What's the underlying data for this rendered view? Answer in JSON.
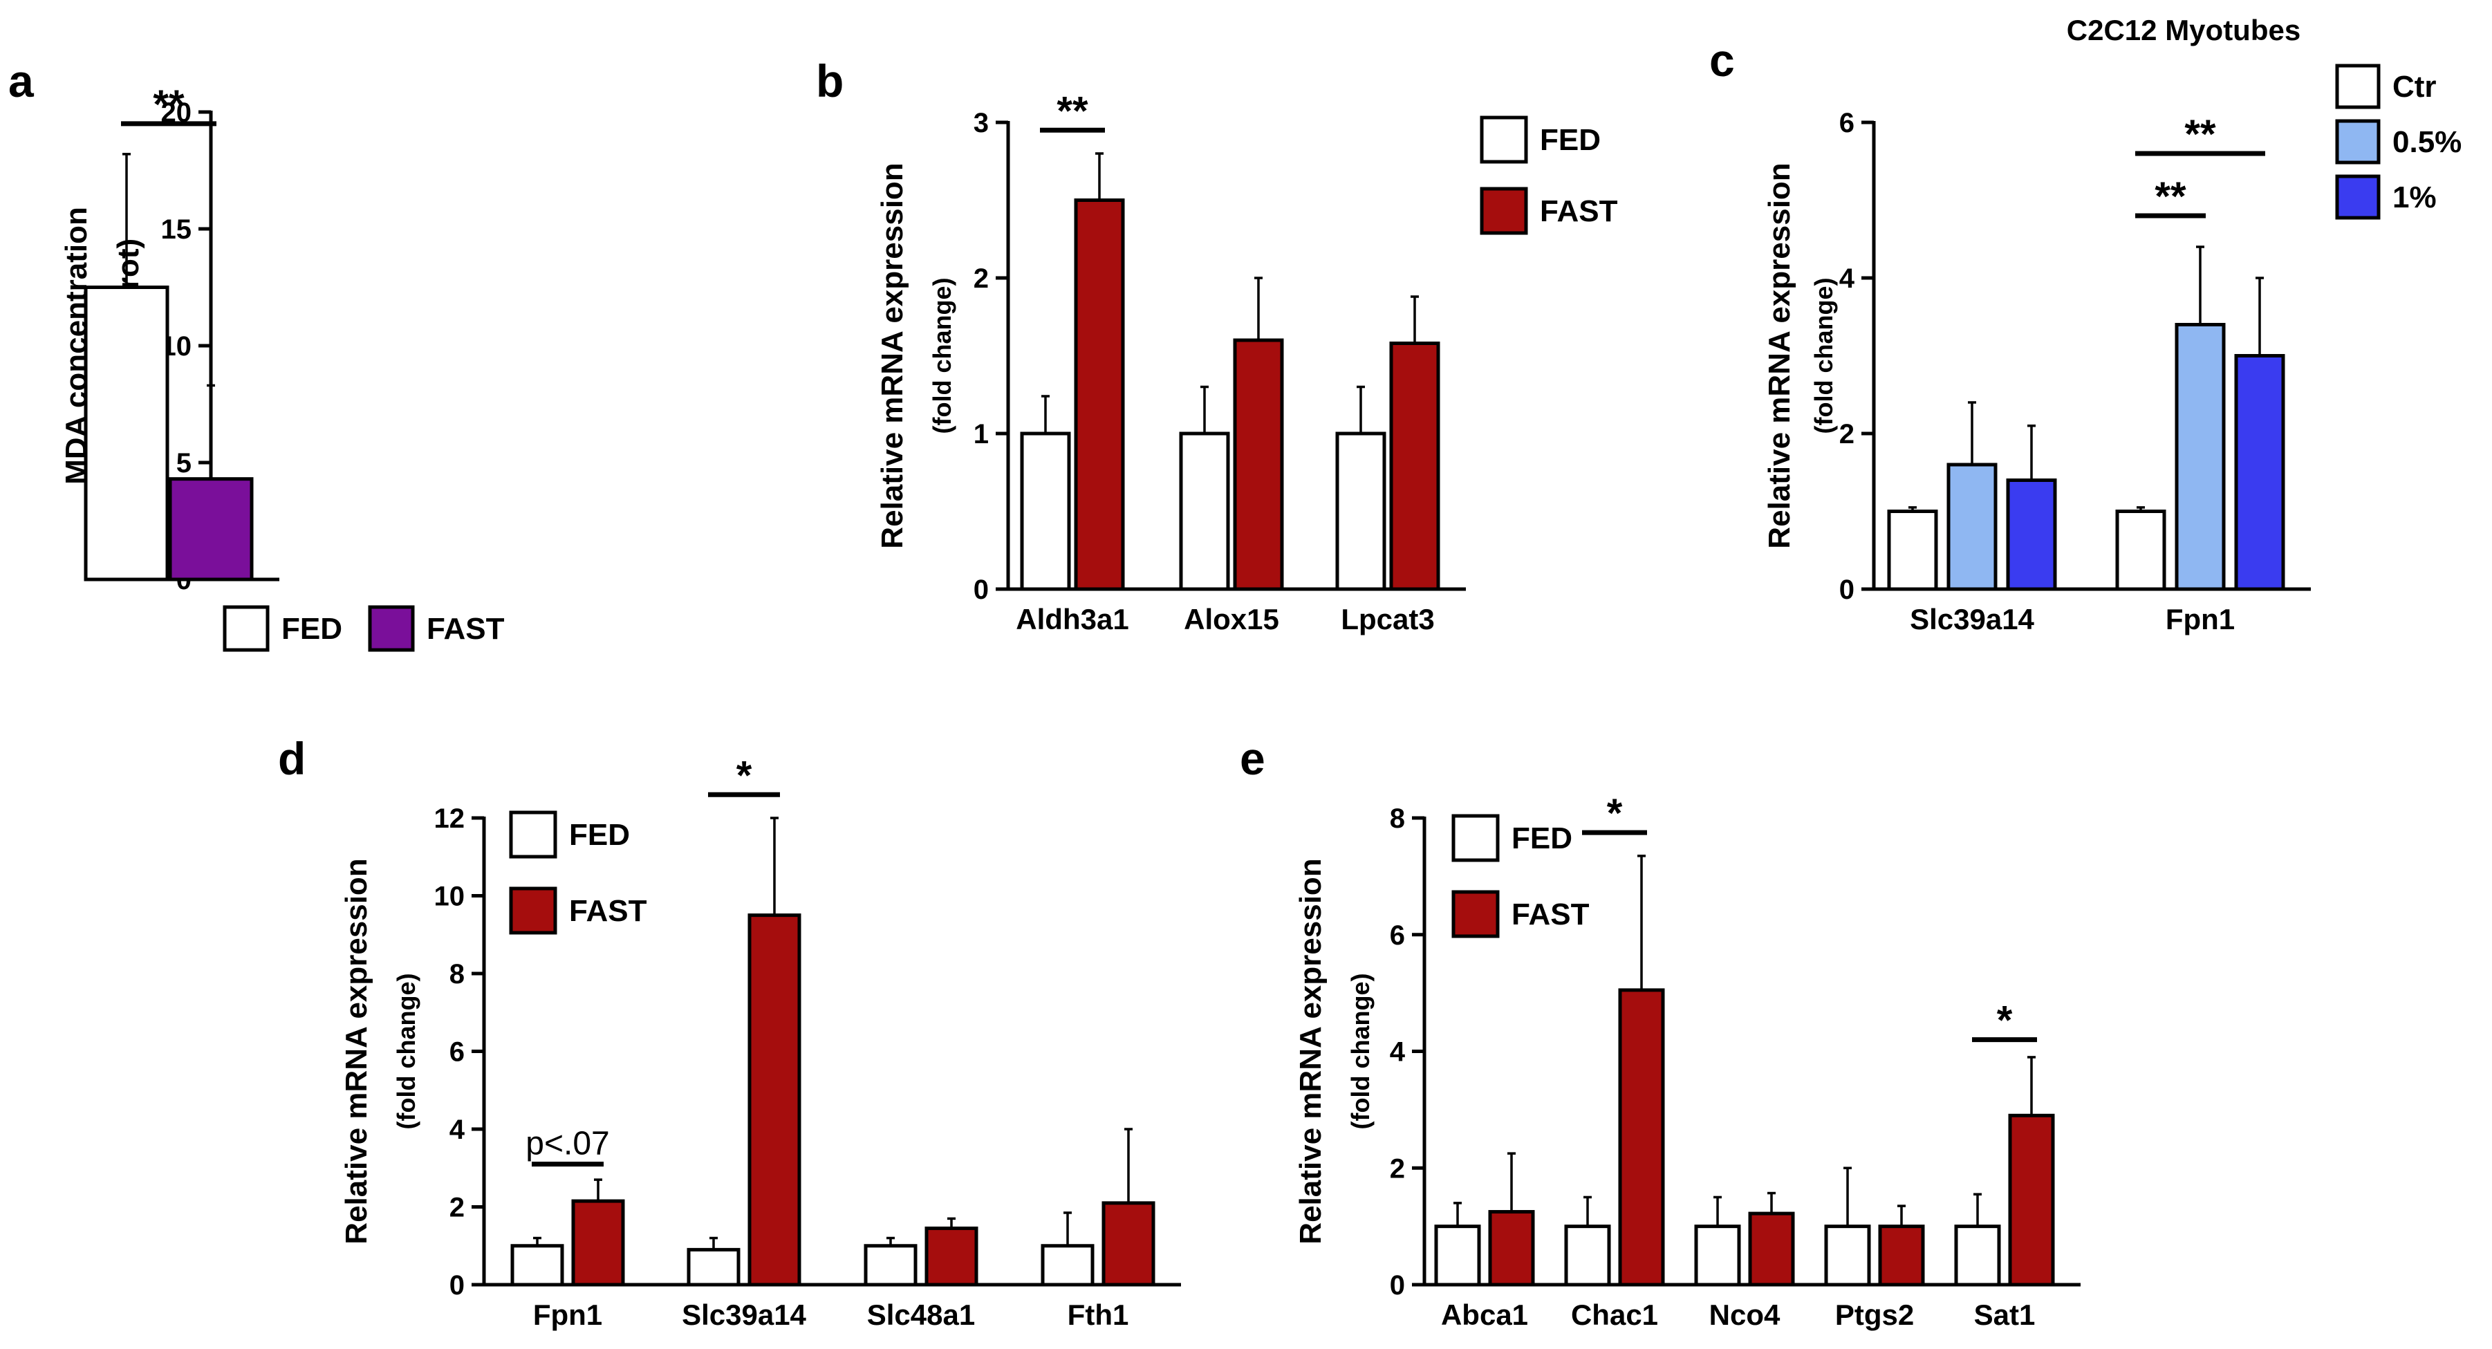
{
  "colors": {
    "fed": "#ffffff",
    "fast_purple": "#7a0f9a",
    "fast_red": "#a50d0d",
    "light_blue": "#8fb7f2",
    "blue": "#3a3cf0",
    "stroke": "#000000"
  },
  "chart_data": [
    {
      "id": "a",
      "panel": "a",
      "type": "bar",
      "title": "",
      "ylabel": "MDA concentration",
      "ylabel_sub": "(nmol/mg prot)",
      "xlabel": "",
      "ylim": [
        0,
        20
      ],
      "yticks": [
        0,
        5,
        10,
        15,
        20
      ],
      "categories": [
        ""
      ],
      "series": [
        {
          "name": "FED",
          "color": "#ffffff",
          "values": [
            12.5
          ],
          "errors": [
            5.7
          ]
        },
        {
          "name": "FAST",
          "color": "#7a0f9a",
          "values": [
            4.3
          ],
          "errors": [
            4.0
          ]
        }
      ],
      "legend": [
        "FED",
        "FAST"
      ],
      "legend_position": "bottom",
      "annotations": [
        {
          "text": "**",
          "style": "bold",
          "category": 0,
          "from_series": 0,
          "to_series": 1,
          "y": 19.5
        }
      ]
    },
    {
      "id": "b",
      "panel": "b",
      "type": "bar",
      "title": "",
      "ylabel": "Relative mRNA expression",
      "ylabel_sub": "(fold change)",
      "xlabel": "",
      "ylim": [
        0,
        3
      ],
      "yticks": [
        0,
        1,
        2,
        3
      ],
      "categories": [
        "Aldh3a1",
        "Alox15",
        "Lpcat3"
      ],
      "series": [
        {
          "name": "FED",
          "color": "#ffffff",
          "values": [
            1.0,
            1.0,
            1.0
          ],
          "errors": [
            0.24,
            0.3,
            0.3
          ]
        },
        {
          "name": "FAST",
          "color": "#a50d0d",
          "values": [
            2.5,
            1.6,
            1.58
          ],
          "errors": [
            0.3,
            0.4,
            0.3
          ]
        }
      ],
      "legend": [
        "FED",
        "FAST"
      ],
      "legend_position": "top-right",
      "annotations": [
        {
          "text": "**",
          "style": "bold",
          "category": 0,
          "from_series": 0,
          "to_series": 1,
          "y": 2.95
        }
      ]
    },
    {
      "id": "c",
      "panel": "c",
      "type": "bar",
      "title": "C2C12 Myotubes",
      "ylabel": "Relative mRNA expression",
      "ylabel_sub": "(fold change)",
      "xlabel": "",
      "ylim": [
        0,
        6
      ],
      "yticks": [
        0,
        2,
        4,
        6
      ],
      "categories": [
        "Slc39a14",
        "Fpn1"
      ],
      "series": [
        {
          "name": "Ctr",
          "color": "#ffffff",
          "values": [
            1.0,
            1.0
          ],
          "errors": [
            0.05,
            0.05
          ]
        },
        {
          "name": "0.5%",
          "color": "#8fb7f2",
          "values": [
            1.6,
            3.4
          ],
          "errors": [
            0.8,
            1.0
          ]
        },
        {
          "name": "1%",
          "color": "#3a3cf0",
          "values": [
            1.4,
            3.0
          ],
          "errors": [
            0.7,
            1.0
          ]
        }
      ],
      "legend": [
        "Ctr",
        "0.5%",
        "1%"
      ],
      "legend_position": "top-right",
      "annotations": [
        {
          "text": "**",
          "style": "bold",
          "category": 1,
          "from_series": 0,
          "to_series": 2,
          "y": 5.6
        },
        {
          "text": "**",
          "style": "bold",
          "category": 1,
          "from_series": 0,
          "to_series": 1,
          "y": 4.8
        }
      ]
    },
    {
      "id": "d",
      "panel": "d",
      "type": "bar",
      "title": "",
      "ylabel": "Relative mRNA expression",
      "ylabel_sub": "(fold change)",
      "xlabel": "",
      "ylim": [
        0,
        12
      ],
      "yticks": [
        0,
        2,
        4,
        6,
        8,
        10,
        12
      ],
      "categories": [
        "Fpn1",
        "Slc39a14",
        "Slc48a1",
        "Fth1"
      ],
      "series": [
        {
          "name": "FED",
          "color": "#ffffff",
          "values": [
            1.0,
            0.9,
            1.0,
            1.0
          ],
          "errors": [
            0.2,
            0.3,
            0.2,
            0.85
          ]
        },
        {
          "name": "FAST",
          "color": "#a50d0d",
          "values": [
            2.15,
            9.5,
            1.45,
            2.1
          ],
          "errors": [
            0.55,
            2.5,
            0.25,
            1.9
          ]
        }
      ],
      "legend": [
        "FED",
        "FAST"
      ],
      "legend_position": "top-left",
      "annotations": [
        {
          "text": "p<.07",
          "style": "plain",
          "category": 0,
          "from_series": 0,
          "to_series": 1,
          "y": 3.1
        },
        {
          "text": "*",
          "style": "bold",
          "category": 1,
          "from_series": 0,
          "to_series": 1,
          "y": 12.6
        }
      ]
    },
    {
      "id": "e",
      "panel": "e",
      "type": "bar",
      "title": "",
      "ylabel": "Relative mRNA expression",
      "ylabel_sub": "(fold change)",
      "xlabel": "",
      "ylim": [
        0,
        8
      ],
      "yticks": [
        0,
        2,
        4,
        6,
        8
      ],
      "categories": [
        "Abca1",
        "Chac1",
        "Nco4",
        "Ptgs2",
        "Sat1"
      ],
      "series": [
        {
          "name": "FED",
          "color": "#ffffff",
          "values": [
            1.0,
            1.0,
            1.0,
            1.0,
            1.0
          ],
          "errors": [
            0.4,
            0.5,
            0.5,
            1.0,
            0.55
          ]
        },
        {
          "name": "FAST",
          "color": "#a50d0d",
          "values": [
            1.25,
            5.05,
            1.22,
            1.0,
            2.9
          ],
          "errors": [
            1.0,
            2.3,
            0.35,
            0.35,
            1.0
          ]
        }
      ],
      "legend": [
        "FED",
        "FAST"
      ],
      "legend_position": "top-left",
      "annotations": [
        {
          "text": "*",
          "style": "bold",
          "category": 1,
          "from_series": 0,
          "to_series": 1,
          "y": 7.75
        },
        {
          "text": "*",
          "style": "bold",
          "category": 4,
          "from_series": 0,
          "to_series": 1,
          "y": 4.2
        }
      ]
    }
  ]
}
